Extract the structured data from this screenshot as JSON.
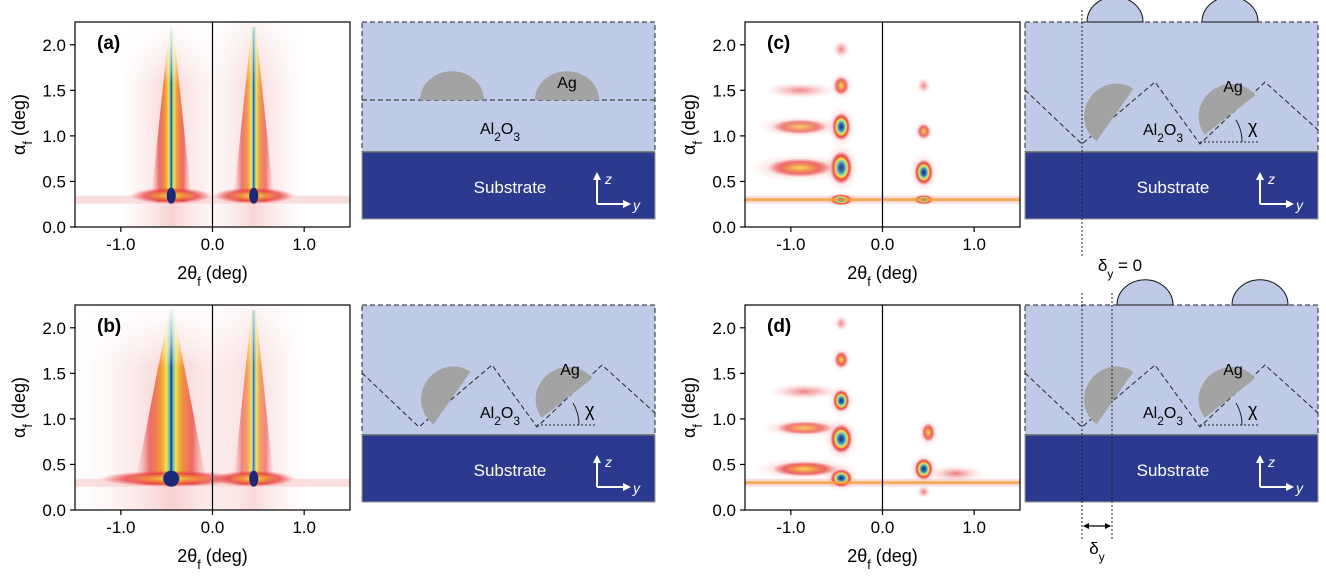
{
  "panels": [
    {
      "id": "a",
      "label": "(a)",
      "geometry": "flat"
    },
    {
      "id": "b",
      "label": "(b)",
      "geometry": "triangular"
    },
    {
      "id": "c",
      "label": "(c)",
      "geometry": "triangular-capped-aligned",
      "delta_label": "δy = 0"
    },
    {
      "id": "d",
      "label": "(d)",
      "geometry": "triangular-capped-shifted",
      "delta_label": "δy"
    }
  ],
  "axes": {
    "y_label": "αf (deg)",
    "x_label": "2θf (deg)",
    "y_ticks": [
      "0.0",
      "0.5",
      "1.0",
      "1.5",
      "2.0"
    ],
    "x_ticks": [
      "-1.0",
      "0.0",
      "1.0"
    ]
  },
  "schematic": {
    "particle_label": "Ag",
    "oxide_label": "Al2O3",
    "substrate_label": "Substrate",
    "angle_label": "χ",
    "axis_z": "z",
    "axis_y": "y"
  },
  "colors": {
    "oxide": "#bfcbe6",
    "substrate": "#2b3a8f",
    "particle": "#a3a3a3",
    "intensity_low": "#f5d0d0",
    "intensity_mid": "#e83a3a",
    "intensity_high": "#f2e34a",
    "intensity_peak": "#1b2a78"
  },
  "chart_data": [
    {
      "type": "heatmap",
      "panel": "a",
      "xlabel": "2θf (deg)",
      "ylabel": "αf (deg)",
      "xlim": [
        -1.5,
        1.5
      ],
      "ylim": [
        0.0,
        2.25
      ],
      "vertical_line_x": 0.0,
      "rods": [
        {
          "x": -0.45,
          "width": 0.2,
          "intensity": 1.0
        },
        {
          "x": 0.45,
          "width": 0.2,
          "intensity": 0.9
        }
      ],
      "horizontal_line_y": 0.3,
      "spots": []
    },
    {
      "type": "heatmap",
      "panel": "b",
      "xlabel": "2θf (deg)",
      "ylabel": "αf (deg)",
      "xlim": [
        -1.5,
        1.5
      ],
      "ylim": [
        0.0,
        2.25
      ],
      "vertical_line_x": 0.0,
      "rods": [
        {
          "x": -0.45,
          "width": 0.35,
          "intensity": 1.0
        },
        {
          "x": 0.45,
          "width": 0.2,
          "intensity": 0.8
        }
      ],
      "horizontal_line_y": 0.3,
      "spots": []
    },
    {
      "type": "heatmap",
      "panel": "c",
      "xlabel": "2θf (deg)",
      "ylabel": "αf (deg)",
      "xlim": [
        -1.5,
        1.5
      ],
      "ylim": [
        0.0,
        2.25
      ],
      "vertical_line_x": 0.0,
      "horizontal_line_y": 0.3,
      "spots": [
        {
          "x": -0.45,
          "y": 0.3,
          "w": 0.12,
          "h": 0.06,
          "i": 1.0
        },
        {
          "x": -0.45,
          "y": 0.65,
          "w": 0.12,
          "h": 0.18,
          "i": 1.0
        },
        {
          "x": -0.45,
          "y": 1.1,
          "w": 0.1,
          "h": 0.15,
          "i": 1.0
        },
        {
          "x": -0.45,
          "y": 1.55,
          "w": 0.08,
          "h": 0.1,
          "i": 0.75
        },
        {
          "x": -0.45,
          "y": 1.95,
          "w": 0.06,
          "h": 0.07,
          "i": 0.4
        },
        {
          "x": -0.9,
          "y": 0.65,
          "w": 0.35,
          "h": 0.1,
          "i": 0.7
        },
        {
          "x": -0.9,
          "y": 1.1,
          "w": 0.3,
          "h": 0.08,
          "i": 0.55
        },
        {
          "x": -0.9,
          "y": 1.5,
          "w": 0.25,
          "h": 0.06,
          "i": 0.3
        },
        {
          "x": 0.45,
          "y": 0.3,
          "w": 0.1,
          "h": 0.05,
          "i": 0.9
        },
        {
          "x": 0.45,
          "y": 0.6,
          "w": 0.1,
          "h": 0.14,
          "i": 0.95
        },
        {
          "x": 0.45,
          "y": 1.05,
          "w": 0.07,
          "h": 0.08,
          "i": 0.7
        },
        {
          "x": 0.45,
          "y": 1.55,
          "w": 0.05,
          "h": 0.06,
          "i": 0.35
        }
      ]
    },
    {
      "type": "heatmap",
      "panel": "d",
      "xlabel": "2θf (deg)",
      "ylabel": "αf (deg)",
      "xlim": [
        -1.5,
        1.5
      ],
      "ylim": [
        0.0,
        2.25
      ],
      "vertical_line_x": 0.0,
      "horizontal_line_y": 0.3,
      "spots": [
        {
          "x": -0.45,
          "y": 0.35,
          "w": 0.12,
          "h": 0.1,
          "i": 1.0
        },
        {
          "x": -0.45,
          "y": 0.78,
          "w": 0.12,
          "h": 0.16,
          "i": 1.0
        },
        {
          "x": -0.45,
          "y": 1.2,
          "w": 0.09,
          "h": 0.12,
          "i": 1.0
        },
        {
          "x": -0.45,
          "y": 1.65,
          "w": 0.07,
          "h": 0.09,
          "i": 0.8
        },
        {
          "x": -0.45,
          "y": 2.05,
          "w": 0.05,
          "h": 0.06,
          "i": 0.35
        },
        {
          "x": -0.85,
          "y": 0.45,
          "w": 0.35,
          "h": 0.08,
          "i": 0.75
        },
        {
          "x": -0.85,
          "y": 0.9,
          "w": 0.3,
          "h": 0.07,
          "i": 0.6
        },
        {
          "x": -0.85,
          "y": 1.3,
          "w": 0.25,
          "h": 0.06,
          "i": 0.4
        },
        {
          "x": 0.45,
          "y": 0.45,
          "w": 0.1,
          "h": 0.12,
          "i": 1.0
        },
        {
          "x": 0.5,
          "y": 0.85,
          "w": 0.07,
          "h": 0.1,
          "i": 0.75
        },
        {
          "x": 0.45,
          "y": 0.2,
          "w": 0.05,
          "h": 0.05,
          "i": 0.5
        },
        {
          "x": 0.8,
          "y": 0.4,
          "w": 0.2,
          "h": 0.06,
          "i": 0.45
        }
      ]
    }
  ]
}
